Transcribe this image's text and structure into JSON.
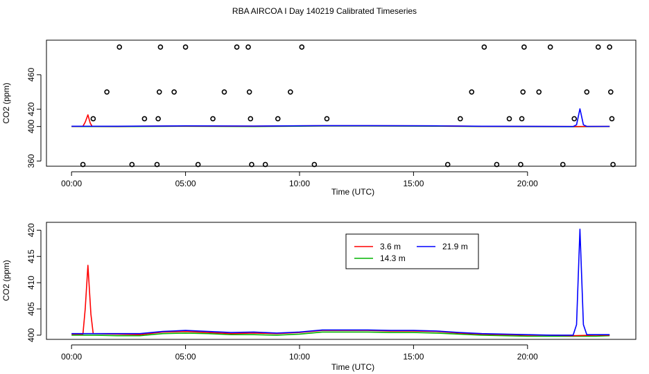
{
  "title": "RBA AIRCOA I  Day 140219  Calibrated Timeseries",
  "colors": {
    "red": "#ff0000",
    "green": "#00b400",
    "blue": "#0000ff",
    "black": "#000000"
  },
  "chart_data": [
    {
      "id": "top",
      "type": "line",
      "xlabel": "Time (UTC)",
      "ylabel": "CO2 (ppm)",
      "xlim": [
        -1.1,
        24.75
      ],
      "ylim": [
        354,
        500
      ],
      "xticks": [
        0,
        5,
        10,
        15,
        20
      ],
      "xtick_labels": [
        "00:00",
        "05:00",
        "10:00",
        "15:00",
        "20:00"
      ],
      "yticks": [
        360,
        400,
        420,
        460
      ],
      "ytick_labels": [
        "360",
        "400",
        "420",
        "460"
      ],
      "series": [
        {
          "name": "3.6 m",
          "color": "red",
          "points": [
            [
              0.0,
              400.2
            ],
            [
              0.5,
              400.3
            ],
            [
              0.6,
              405
            ],
            [
              0.72,
              413.5
            ],
            [
              0.82,
              404
            ],
            [
              0.9,
              400.3
            ],
            [
              2,
              400.2
            ],
            [
              4,
              400.5
            ],
            [
              5,
              400.6
            ],
            [
              8,
              400.4
            ],
            [
              11,
              400.9
            ],
            [
              13,
              400.9
            ],
            [
              16,
              400.7
            ],
            [
              18,
              400.2
            ],
            [
              20,
              400.1
            ],
            [
              22,
              400.0
            ],
            [
              23.6,
              400.1
            ]
          ]
        },
        {
          "name": "14.3 m",
          "color": "green",
          "points": [
            [
              0.0,
              400.0
            ],
            [
              2,
              399.9
            ],
            [
              4,
              400.2
            ],
            [
              5,
              400.3
            ],
            [
              8,
              400.0
            ],
            [
              11,
              400.6
            ],
            [
              13,
              400.6
            ],
            [
              16,
              400.4
            ],
            [
              18,
              400.0
            ],
            [
              20,
              399.9
            ],
            [
              22,
              399.8
            ],
            [
              23.6,
              400.0
            ]
          ]
        },
        {
          "name": "21.9 m",
          "color": "blue",
          "points": [
            [
              0.0,
              400.3
            ],
            [
              2,
              400.3
            ],
            [
              4,
              400.6
            ],
            [
              5,
              400.8
            ],
            [
              8,
              400.5
            ],
            [
              11,
              401.0
            ],
            [
              13,
              401.0
            ],
            [
              16,
              400.8
            ],
            [
              18,
              400.3
            ],
            [
              20,
              400.2
            ],
            [
              22,
              400.0
            ],
            [
              22.15,
              402
            ],
            [
              22.3,
              420.5
            ],
            [
              22.45,
              402
            ],
            [
              22.6,
              400.1
            ],
            [
              23.6,
              400.1
            ]
          ]
        }
      ],
      "markers": {
        "label": "open circles",
        "points": [
          [
            0.5,
            356
          ],
          [
            0.95,
            409
          ],
          [
            1.55,
            440
          ],
          [
            2.1,
            492
          ],
          [
            2.65,
            356
          ],
          [
            3.2,
            409
          ],
          [
            3.75,
            356
          ],
          [
            3.8,
            409
          ],
          [
            3.85,
            440
          ],
          [
            3.9,
            492
          ],
          [
            4.5,
            440
          ],
          [
            5.0,
            492
          ],
          [
            5.55,
            356
          ],
          [
            6.2,
            409
          ],
          [
            6.7,
            440
          ],
          [
            7.25,
            492
          ],
          [
            7.75,
            492
          ],
          [
            7.8,
            440
          ],
          [
            7.85,
            409
          ],
          [
            7.9,
            356
          ],
          [
            8.5,
            356
          ],
          [
            9.05,
            409
          ],
          [
            9.6,
            440
          ],
          [
            10.1,
            492
          ],
          [
            10.65,
            356
          ],
          [
            11.2,
            409
          ],
          [
            16.5,
            356
          ],
          [
            17.05,
            409
          ],
          [
            17.55,
            440
          ],
          [
            18.1,
            492
          ],
          [
            18.65,
            356
          ],
          [
            19.2,
            409
          ],
          [
            19.7,
            356
          ],
          [
            19.75,
            409
          ],
          [
            19.8,
            440
          ],
          [
            19.85,
            492
          ],
          [
            20.5,
            440
          ],
          [
            21.0,
            492
          ],
          [
            21.55,
            356
          ],
          [
            22.05,
            409
          ],
          [
            22.6,
            440
          ],
          [
            23.1,
            492
          ],
          [
            23.6,
            492
          ],
          [
            23.65,
            440
          ],
          [
            23.7,
            409
          ],
          [
            23.75,
            356
          ]
        ]
      }
    },
    {
      "id": "bottom",
      "type": "line",
      "xlabel": "Time (UTC)",
      "ylabel": "CO2 (ppm)",
      "xlim": [
        -1.1,
        24.75
      ],
      "ylim": [
        399.2,
        421.5
      ],
      "xticks": [
        0,
        5,
        10,
        15,
        20
      ],
      "xtick_labels": [
        "00:00",
        "05:00",
        "10:00",
        "15:00",
        "20:00"
      ],
      "yticks": [
        400,
        405,
        410,
        415,
        420
      ],
      "ytick_labels": [
        "400",
        "405",
        "410",
        "415",
        "420"
      ],
      "legend": {
        "position": "top-center",
        "entries": [
          {
            "label": "3.6 m",
            "color": "red"
          },
          {
            "label": "21.9 m",
            "color": "blue"
          },
          {
            "label": "14.3 m",
            "color": "green"
          }
        ]
      },
      "series": [
        {
          "name": "3.6 m",
          "color": "red",
          "points": [
            [
              0.0,
              400.2
            ],
            [
              0.5,
              400.2
            ],
            [
              0.6,
              405
            ],
            [
              0.72,
              413.3
            ],
            [
              0.85,
              404
            ],
            [
              0.95,
              400.3
            ],
            [
              2,
              400.2
            ],
            [
              3,
              400.1
            ],
            [
              4,
              400.6
            ],
            [
              5,
              400.7
            ],
            [
              6,
              400.5
            ],
            [
              7,
              400.3
            ],
            [
              8,
              400.4
            ],
            [
              9,
              400.3
            ],
            [
              10,
              400.5
            ],
            [
              11,
              400.9
            ],
            [
              12,
              400.9
            ],
            [
              13,
              400.9
            ],
            [
              14,
              400.8
            ],
            [
              15,
              400.8
            ],
            [
              16,
              400.7
            ],
            [
              17,
              400.4
            ],
            [
              18,
              400.2
            ],
            [
              19,
              400.1
            ],
            [
              20,
              400.0
            ],
            [
              21,
              400.0
            ],
            [
              22,
              399.9
            ],
            [
              23,
              400.0
            ],
            [
              23.6,
              400.0
            ]
          ]
        },
        {
          "name": "14.3 m",
          "color": "green",
          "points": [
            [
              0.0,
              400.0
            ],
            [
              1,
              400.0
            ],
            [
              2,
              399.9
            ],
            [
              3,
              399.9
            ],
            [
              4,
              400.3
            ],
            [
              5,
              400.4
            ],
            [
              6,
              400.3
            ],
            [
              7,
              400.1
            ],
            [
              8,
              400.1
            ],
            [
              9,
              400.0
            ],
            [
              10,
              400.2
            ],
            [
              11,
              400.6
            ],
            [
              12,
              400.6
            ],
            [
              13,
              400.6
            ],
            [
              14,
              400.5
            ],
            [
              15,
              400.5
            ],
            [
              16,
              400.4
            ],
            [
              17,
              400.2
            ],
            [
              18,
              400.0
            ],
            [
              19,
              399.9
            ],
            [
              20,
              399.8
            ],
            [
              21,
              399.8
            ],
            [
              22,
              399.8
            ],
            [
              23,
              399.8
            ],
            [
              23.6,
              399.9
            ]
          ]
        },
        {
          "name": "21.9 m",
          "color": "blue",
          "points": [
            [
              0.0,
              400.3
            ],
            [
              1,
              400.3
            ],
            [
              2,
              400.3
            ],
            [
              3,
              400.3
            ],
            [
              4,
              400.7
            ],
            [
              5,
              400.9
            ],
            [
              6,
              400.7
            ],
            [
              7,
              400.5
            ],
            [
              8,
              400.6
            ],
            [
              9,
              400.4
            ],
            [
              10,
              400.6
            ],
            [
              11,
              401.0
            ],
            [
              12,
              401.0
            ],
            [
              13,
              401.0
            ],
            [
              14,
              400.9
            ],
            [
              15,
              400.9
            ],
            [
              16,
              400.8
            ],
            [
              17,
              400.5
            ],
            [
              18,
              400.3
            ],
            [
              19,
              400.2
            ],
            [
              20,
              400.1
            ],
            [
              21,
              400.0
            ],
            [
              22,
              400.0
            ],
            [
              22.15,
              402
            ],
            [
              22.3,
              420.2
            ],
            [
              22.45,
              402
            ],
            [
              22.6,
              400.1
            ],
            [
              23,
              400.1
            ],
            [
              23.6,
              400.1
            ]
          ]
        }
      ]
    }
  ]
}
